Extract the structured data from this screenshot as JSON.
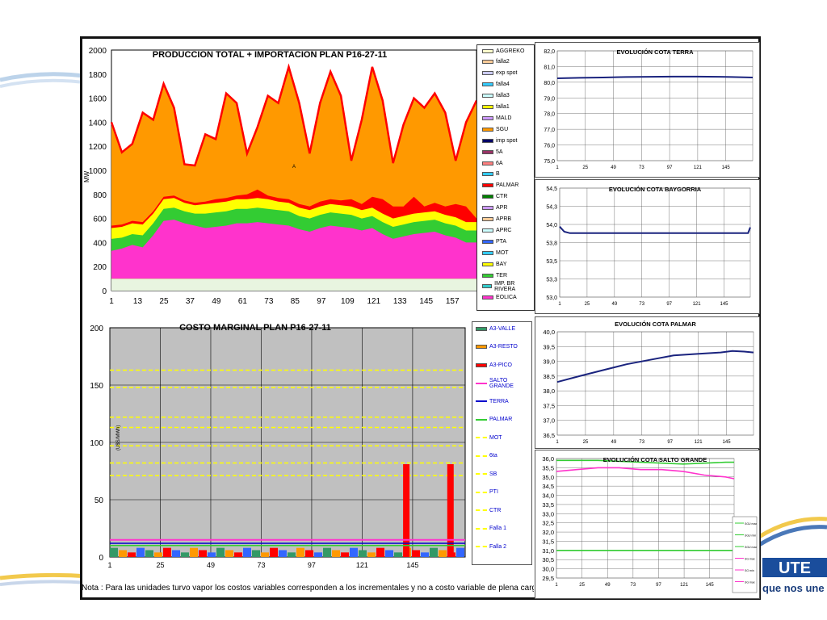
{
  "note": "Nota : Para las unidades turvo vapor los costos variables corresponden a los incrementales y no a costo variable de plena carga",
  "brand": {
    "tagline": "que nos une"
  },
  "colors": {
    "red": "#ff0000",
    "orange": "#ff9900",
    "yellow": "#ffff00",
    "green": "#33cc33",
    "magenta": "#ff33cc",
    "cyan": "#33ccff",
    "navy": "#1a237e",
    "grey": "#c0c0c0"
  },
  "legend_production": [
    {
      "label": "AGGREKO",
      "color": "#ffffcc"
    },
    {
      "label": "falla2",
      "color": "#ffcc99"
    },
    {
      "label": "exp spot",
      "color": "#ccccff"
    },
    {
      "label": "falla4",
      "color": "#33ccff"
    },
    {
      "label": "falla3",
      "color": "#ccffff"
    },
    {
      "label": "falla1",
      "color": "#ffff00"
    },
    {
      "label": "MALD",
      "color": "#cc99ff"
    },
    {
      "label": "SGU",
      "color": "#ff9900"
    },
    {
      "label": "imp spot",
      "color": "#000066"
    },
    {
      "label": "5A",
      "color": "#993366"
    },
    {
      "label": "6A",
      "color": "#ff8080"
    },
    {
      "label": "B",
      "color": "#33ccff"
    },
    {
      "label": "PALMAR",
      "color": "#ff0000"
    },
    {
      "label": "CTR",
      "color": "#008000"
    },
    {
      "label": "APR",
      "color": "#cc99ff"
    },
    {
      "label": "APRB",
      "color": "#ffcc99"
    },
    {
      "label": "APRC",
      "color": "#ccffff"
    },
    {
      "label": "PTA",
      "color": "#3366ff"
    },
    {
      "label": "MOT",
      "color": "#33ccff"
    },
    {
      "label": "BAY",
      "color": "#ffff00"
    },
    {
      "label": "TER",
      "color": "#33cc33"
    },
    {
      "label": "IMP. BR RIVERA",
      "color": "#33cccc"
    },
    {
      "label": "EOLICA",
      "color": "#ff33cc"
    }
  ],
  "legend_cost": [
    {
      "label": "A3-VALLE",
      "color": "#339966",
      "style": "bar"
    },
    {
      "label": "A3-RESTO",
      "color": "#ff9900",
      "style": "bar"
    },
    {
      "label": "A3-PICO",
      "color": "#ff0000",
      "style": "bar"
    },
    {
      "label": "SALTO GRANDE",
      "color": "#ff33cc",
      "style": "line"
    },
    {
      "label": "TERRA",
      "color": "#0000cc",
      "style": "line"
    },
    {
      "label": "PALMAR",
      "color": "#33cc33",
      "style": "line"
    },
    {
      "label": "MOT",
      "color": "#ffff00",
      "style": "dash"
    },
    {
      "label": "6ta",
      "color": "#ffff00",
      "style": "dash"
    },
    {
      "label": "SB",
      "color": "#ffff00",
      "style": "dash"
    },
    {
      "label": "PTI",
      "color": "#ffff00",
      "style": "dash"
    },
    {
      "label": "CTR",
      "color": "#ffff00",
      "style": "dash"
    },
    {
      "label": "Falla 1",
      "color": "#ffff00",
      "style": "dash"
    },
    {
      "label": "Falla 2",
      "color": "#ffff00",
      "style": "dash"
    }
  ],
  "legend_salto": [
    {
      "label": "SGU max",
      "color": "#33cc33"
    },
    {
      "label": "SGU min",
      "color": "#33cc33"
    },
    {
      "label": "SGU max",
      "color": "#33cc33"
    },
    {
      "label": "SG max",
      "color": "#ff33cc"
    },
    {
      "label": "SG min",
      "color": "#ff33cc"
    },
    {
      "label": "SG max",
      "color": "#ff33cc"
    }
  ],
  "chart_data": [
    {
      "id": "production",
      "type": "area",
      "title": "PRODUCCION TOTAL + IMPORTACION PLAN    P16-27-11",
      "ylabel": "MW",
      "ylim": [
        0,
        2000
      ],
      "yticks": [
        0,
        200,
        400,
        600,
        800,
        1000,
        1200,
        1400,
        1600,
        1800,
        2000
      ],
      "xticks": [
        "1",
        "13",
        "25",
        "37",
        "49",
        "61",
        "73",
        "85",
        "97",
        "109",
        "121",
        "133",
        "145",
        "157"
      ],
      "xlim": [
        1,
        168
      ],
      "annotation": "A",
      "series": [
        {
          "name": "EOLICA",
          "color": "#ff33cc",
          "values": [
            330,
            350,
            380,
            360,
            460,
            580,
            590,
            560,
            540,
            520,
            530,
            540,
            560,
            560,
            570,
            560,
            550,
            540,
            510,
            490,
            520,
            540,
            530,
            520,
            500,
            520,
            470,
            430,
            450,
            470,
            480,
            490,
            460,
            440,
            400,
            400
          ]
        },
        {
          "name": "TER",
          "color": "#33cc33",
          "values": [
            430,
            440,
            470,
            460,
            560,
            680,
            690,
            660,
            640,
            640,
            650,
            660,
            680,
            680,
            690,
            680,
            670,
            660,
            620,
            600,
            630,
            650,
            640,
            630,
            600,
            620,
            570,
            530,
            550,
            570,
            580,
            590,
            560,
            540,
            500,
            500
          ]
        },
        {
          "name": "BAY",
          "color": "#ffff00",
          "values": [
            520,
            530,
            560,
            550,
            640,
            760,
            770,
            730,
            710,
            720,
            730,
            740,
            760,
            760,
            770,
            760,
            740,
            730,
            690,
            670,
            700,
            720,
            710,
            700,
            670,
            690,
            640,
            600,
            620,
            640,
            650,
            660,
            630,
            610,
            570,
            570
          ]
        },
        {
          "name": "PALMAR",
          "color": "#ff0000",
          "values": [
            540,
            550,
            580,
            570,
            660,
            780,
            790,
            750,
            730,
            740,
            760,
            770,
            790,
            800,
            840,
            790,
            770,
            760,
            720,
            700,
            740,
            760,
            750,
            760,
            720,
            780,
            760,
            700,
            700,
            780,
            700,
            730,
            700,
            720,
            700,
            600
          ]
        },
        {
          "name": "SGU",
          "color": "#ff9900",
          "values": [
            1400,
            1150,
            1220,
            1480,
            1420,
            1720,
            1520,
            1050,
            1040,
            1300,
            1260,
            1640,
            1560,
            1140,
            1360,
            1620,
            1560,
            1860,
            1560,
            1140,
            1560,
            1820,
            1620,
            1080,
            1420,
            1860,
            1580,
            1060,
            1380,
            1600,
            1520,
            1640,
            1480,
            1080,
            1400,
            1580
          ]
        }
      ],
      "base_grey": 100
    },
    {
      "id": "cost",
      "type": "bar",
      "title": "COSTO MARGINAL PLAN    P16-27-11",
      "ylabel": "(U$S/MWh)",
      "ylim": [
        0,
        200
      ],
      "yticks": [
        0,
        50,
        100,
        150,
        200
      ],
      "xticks": [
        "1",
        "25",
        "49",
        "73",
        "97",
        "121",
        "145"
      ],
      "xlim": [
        1,
        170
      ],
      "dashed_levels": [
        163,
        148,
        122,
        113,
        97,
        82,
        71
      ],
      "spikes": [
        {
          "x": 142,
          "value": 81
        },
        {
          "x": 163,
          "value": 81
        }
      ],
      "salto_grande": 15,
      "terra": 12,
      "palmar": 10
    },
    {
      "id": "terra",
      "type": "line",
      "title": "EVOLUCIÓN COTA TERRA",
      "ylim": [
        75,
        82
      ],
      "yticks": [
        "75,0",
        "76,0",
        "77,0",
        "78,0",
        "79,0",
        "80,0",
        "81,0",
        "82,0"
      ],
      "xticks": [
        "1",
        "25",
        "49",
        "73",
        "97",
        "121",
        "145"
      ],
      "xlim": [
        1,
        168
      ],
      "x": [
        1,
        20,
        40,
        60,
        80,
        100,
        120,
        140,
        150,
        168
      ],
      "y": [
        80.25,
        80.28,
        80.3,
        80.33,
        80.35,
        80.36,
        80.36,
        80.35,
        80.33,
        80.3
      ]
    },
    {
      "id": "baygorria",
      "type": "line",
      "title": "EVOLUCIÓN COTA BAYGORRIA",
      "ylim": [
        53,
        54.5
      ],
      "yticks": [
        "53,0",
        "53,3",
        "53,5",
        "53,8",
        "54,0",
        "54,3",
        "54,5"
      ],
      "xticks": [
        "1",
        "25",
        "49",
        "73",
        "97",
        "121",
        "145"
      ],
      "xlim": [
        1,
        168
      ],
      "x": [
        1,
        5,
        10,
        40,
        80,
        120,
        160,
        166,
        168
      ],
      "y": [
        53.97,
        53.9,
        53.88,
        53.88,
        53.88,
        53.88,
        53.88,
        53.88,
        53.96
      ]
    },
    {
      "id": "palmar",
      "type": "line",
      "title": "EVOLUCIÓN COTA PALMAR",
      "ylim": [
        36.5,
        40
      ],
      "yticks": [
        "36,5",
        "37,0",
        "37,5",
        "38,0",
        "38,5",
        "39,0",
        "39,5",
        "40,0"
      ],
      "xticks": [
        "1",
        "25",
        "49",
        "73",
        "97",
        "121",
        "145"
      ],
      "xlim": [
        1,
        168
      ],
      "x": [
        1,
        20,
        40,
        60,
        80,
        100,
        120,
        140,
        150,
        160,
        168
      ],
      "y": [
        38.3,
        38.5,
        38.7,
        38.9,
        39.05,
        39.2,
        39.25,
        39.3,
        39.35,
        39.33,
        39.3
      ]
    },
    {
      "id": "salto",
      "type": "line",
      "title": "EVOLUCIÓN COTA SALTO GRANDE",
      "ylim": [
        29.5,
        36
      ],
      "yticks": [
        "29,5",
        "30,0",
        "30,5",
        "31,0",
        "31,5",
        "32,0",
        "32,5",
        "33,0",
        "33,5",
        "34,0",
        "34,5",
        "35,0",
        "35,5",
        "36,0"
      ],
      "xticks": [
        "1",
        "25",
        "49",
        "73",
        "97",
        "121",
        "145"
      ],
      "xlim": [
        1,
        168
      ],
      "series": [
        {
          "name": "SGU max",
          "color": "#33cc33",
          "x": [
            1,
            40,
            80,
            120,
            160,
            168
          ],
          "y": [
            35.9,
            35.9,
            35.8,
            35.7,
            35.8,
            35.8
          ]
        },
        {
          "name": "SG",
          "color": "#ff33cc",
          "x": [
            1,
            20,
            40,
            60,
            80,
            100,
            120,
            140,
            160,
            168
          ],
          "y": [
            35.3,
            35.4,
            35.5,
            35.5,
            35.4,
            35.4,
            35.3,
            35.1,
            35.0,
            34.9
          ]
        },
        {
          "name": "SG min",
          "color": "#33cc33",
          "x": [
            1,
            168
          ],
          "y": [
            31.0,
            31.0
          ]
        }
      ]
    }
  ]
}
